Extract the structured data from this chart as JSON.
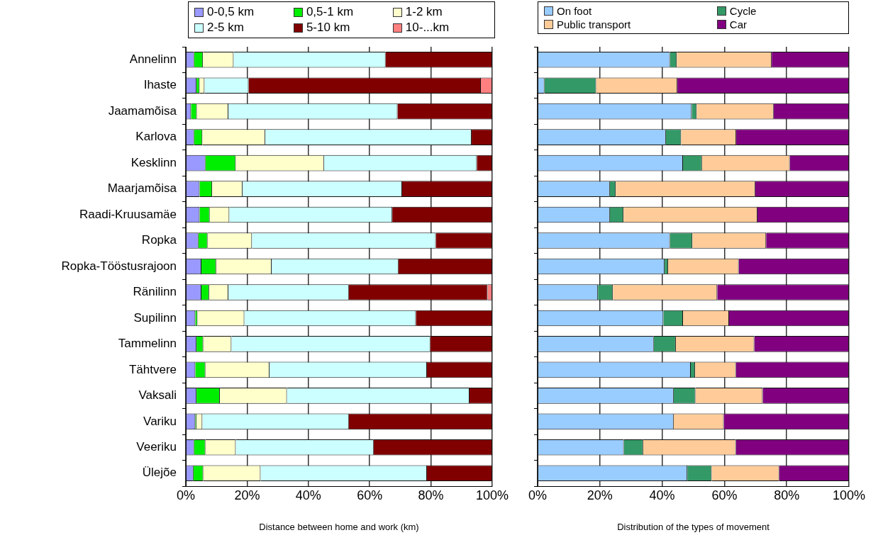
{
  "chart_data": [
    {
      "type": "bar",
      "orientation": "horizontal",
      "stacked": true,
      "grid": "x",
      "legend": "top",
      "xlabel": "Distance between home and work (km)",
      "categories": [
        "Annelinn",
        "Ihaste",
        "Jaamamõisa",
        "Karlova",
        "Kesklinn",
        "Maarjamõisa",
        "Raadi-Kruusamäe",
        "Ropka",
        "Ropka-Tööstusrajoon",
        "Ränilinn",
        "Supilinn",
        "Tammelinn",
        "Tähtvere",
        "Vaksali",
        "Variku",
        "Veeriku",
        "Ülejõe"
      ],
      "xlim": [
        0,
        100
      ],
      "xticks": [
        {
          "value": 0,
          "label": "0%"
        },
        {
          "value": 20,
          "label": "20%"
        },
        {
          "value": 40,
          "label": "40%"
        },
        {
          "value": 60,
          "label": "60%"
        },
        {
          "value": 80,
          "label": "80%"
        },
        {
          "value": 100,
          "label": "100%"
        }
      ],
      "series": [
        {
          "name": "0-0,5 km",
          "color": "#9999ff",
          "values": [
            2.7,
            3.5,
            1.7,
            2.7,
            6.4,
            4.5,
            4.5,
            4.1,
            5.1,
            5.1,
            3.1,
            3.5,
            3.1,
            3.5,
            3.1,
            2.7,
            2.5
          ]
        },
        {
          "name": "0,5-1 km",
          "color": "#00ee00",
          "values": [
            2.9,
            1.0,
            1.9,
            2.7,
            9.9,
            4.1,
            3.3,
            3.0,
            4.8,
            2.5,
            0.7,
            2.2,
            3.3,
            7.6,
            0.4,
            3.7,
            3.2
          ]
        },
        {
          "name": "1-2 km",
          "color": "#ffffcc",
          "values": [
            10.0,
            1.6,
            10.3,
            20.5,
            28.8,
            9.9,
            6.4,
            14.5,
            18.1,
            6.3,
            15.3,
            9.2,
            20.9,
            21.9,
            1.9,
            9.9,
            18.7
          ]
        },
        {
          "name": "2-5 km",
          "color": "#ccffff",
          "values": [
            49.6,
            14.4,
            55.2,
            67.4,
            49.9,
            52.1,
            53.2,
            60.0,
            41.4,
            39.3,
            56.0,
            64.9,
            51.4,
            59.6,
            47.8,
            45.0,
            54.3
          ]
        },
        {
          "name": "5-10 km",
          "color": "#800000",
          "values": [
            34.8,
            75.8,
            30.9,
            6.7,
            5.0,
            29.4,
            32.6,
            18.4,
            30.6,
            45.3,
            24.9,
            20.2,
            21.3,
            7.4,
            46.8,
            38.7,
            21.3
          ]
        },
        {
          "name": "10-...km",
          "color": "#ff8080",
          "values": [
            0,
            3.7,
            0,
            0,
            0,
            0,
            0,
            0,
            0,
            1.5,
            0,
            0,
            0,
            0,
            0,
            0,
            0
          ]
        }
      ]
    },
    {
      "type": "bar",
      "orientation": "horizontal",
      "stacked": true,
      "grid": "x",
      "legend": "top",
      "tick_labels": "x",
      "xlabel": "Distribution of the types of movement",
      "categories": [
        null,
        null,
        null,
        null,
        null,
        null,
        null,
        null,
        null,
        null,
        null,
        null,
        null,
        null,
        null,
        null,
        null
      ],
      "xlim": [
        0,
        100
      ],
      "xticks": [
        {
          "value": 0,
          "label": "0%"
        },
        {
          "value": 20,
          "label": "20%"
        },
        {
          "value": 40,
          "label": "40%"
        },
        {
          "value": 60,
          "label": "60%"
        },
        {
          "value": 80,
          "label": "80%"
        },
        {
          "value": 100,
          "label": "100%"
        }
      ],
      "series": [
        {
          "name": "On foot",
          "color": "#99ccff",
          "values": [
            42.5,
            2.2,
            49.5,
            41.2,
            46.7,
            23.2,
            23.2,
            42.5,
            40.8,
            19.4,
            40.4,
            37.3,
            49.2,
            43.7,
            43.7,
            27.7,
            48.1
          ]
        },
        {
          "name": "Cycle",
          "color": "#339966",
          "values": [
            2.2,
            16.6,
            1.6,
            4.9,
            6.1,
            1.9,
            4.4,
            7.2,
            1.1,
            4.8,
            6.3,
            7.1,
            1.4,
            7.0,
            0,
            6.2,
            7.8
          ]
        },
        {
          "name": "Public transport",
          "color": "#ffcc99",
          "values": [
            30.5,
            26.1,
            24.7,
            17.7,
            28.2,
            44.8,
            43.0,
            23.7,
            22.7,
            33.5,
            14.8,
            25.2,
            13.1,
            21.6,
            16.1,
            29.8,
            21.7
          ]
        },
        {
          "name": "Car",
          "color": "#800080",
          "values": [
            24.8,
            55.1,
            24.2,
            36.2,
            19.0,
            30.1,
            29.4,
            26.6,
            35.4,
            42.3,
            38.5,
            30.4,
            36.3,
            27.7,
            40.2,
            36.3,
            22.4
          ]
        }
      ]
    }
  ]
}
